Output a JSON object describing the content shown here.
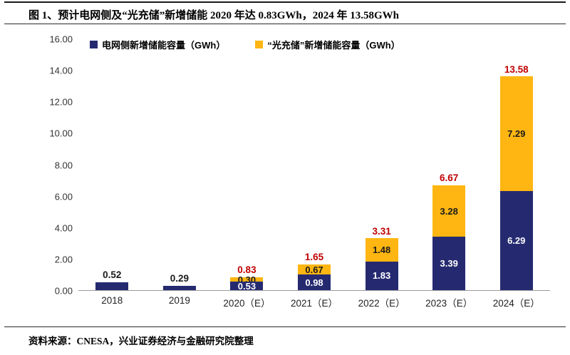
{
  "figure": {
    "title": "图 1、预计电网侧及“光充储”新增储能 2020 年达 0.83GWh，2024 年 13.58GWh",
    "source": "资料来源：CNESA，兴业证券经济与金融研究院整理"
  },
  "chart_data": {
    "type": "bar",
    "stacked": true,
    "title": "预计电网侧及“光充储”新增储能 2020 年达 0.83GWh，2024 年 13.58GWh",
    "categories": [
      "2018",
      "2019",
      "2020（E）",
      "2021（E）",
      "2022（E）",
      "2023（E）",
      "2024（E）"
    ],
    "series": [
      {
        "name": "电网侧新增储能容量（GWh）",
        "color": "#252A70",
        "label_color": "#FFFFFF",
        "values": [
          0.52,
          0.29,
          0.53,
          0.98,
          1.83,
          3.39,
          6.29
        ]
      },
      {
        "name": "“光充储”新增储能容量（GWh）",
        "color": "#FFB612",
        "label_color": "#1A1A1A",
        "values": [
          0,
          0,
          0.3,
          0.67,
          1.48,
          3.28,
          7.29
        ]
      }
    ],
    "totals": [
      0.52,
      0.29,
      0.83,
      1.65,
      3.31,
      6.67,
      13.58
    ],
    "total_label_colors": [
      "#1A1A1A",
      "#1A1A1A",
      "#C00000",
      "#C00000",
      "#C00000",
      "#C00000",
      "#C00000"
    ],
    "ylim": [
      0,
      16
    ],
    "ytick_step": 2,
    "ytick_decimals": 2,
    "grid": false,
    "legend_position": "top",
    "xlabel": "",
    "ylabel": ""
  }
}
